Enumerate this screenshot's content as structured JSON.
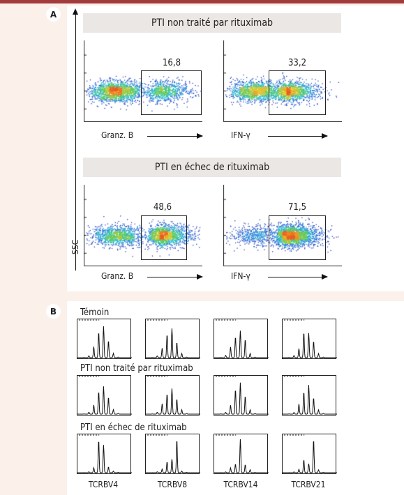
{
  "colors": {
    "accent": "#a33a3c",
    "panel_bg": "#fbf0ea",
    "header_bg": "#ebe7e4"
  },
  "panel_a": {
    "label": "A",
    "y_axis_label": "SSC",
    "groups": [
      {
        "title": "PTI non traité par rituximab",
        "plots": [
          {
            "x_label": "Granz. B",
            "percent": "16,8",
            "positive_fraction": 0.3
          },
          {
            "x_label": "IFN-γ",
            "percent": "33,2",
            "positive_fraction": 0.42
          }
        ]
      },
      {
        "title": "PTI en échec de rituximab",
        "plots": [
          {
            "x_label": "Granz. B",
            "percent": "48,6",
            "positive_fraction": 0.55
          },
          {
            "x_label": "IFN-γ",
            "percent": "71,5",
            "positive_fraction": 0.78
          }
        ]
      }
    ]
  },
  "panel_b": {
    "label": "B",
    "rows": [
      {
        "title": "Témoin",
        "profile": "polyclonal"
      },
      {
        "title": "PTI non traité par rituximab",
        "profile": "polyclonal"
      },
      {
        "title": "PTI en échec de rituximab",
        "profile": "restricted"
      }
    ],
    "columns": [
      "TCRBV4",
      "TCRBV8",
      "TCRBV14",
      "TCRBV21"
    ]
  }
}
